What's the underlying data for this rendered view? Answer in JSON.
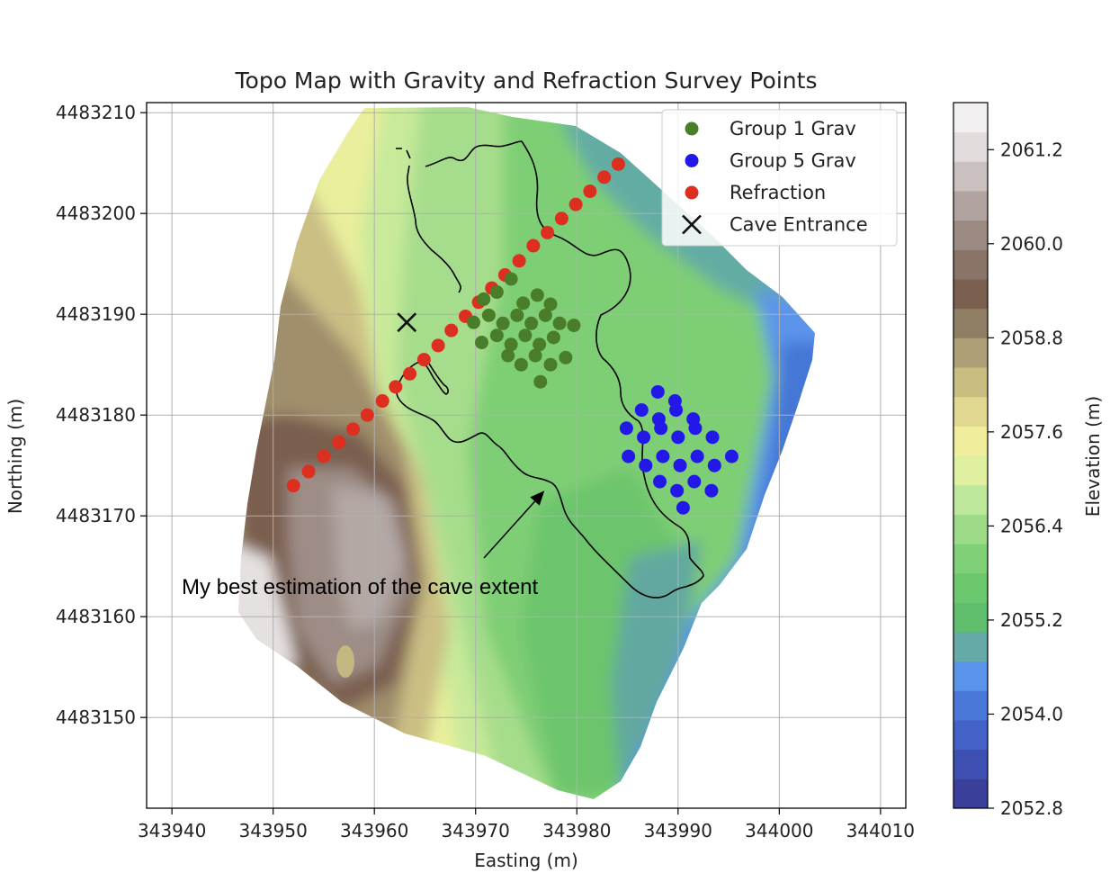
{
  "chart_data": {
    "type": "map",
    "title": "Topo Map with Gravity and Refraction Survey Points",
    "xlabel": "Easting (m)",
    "ylabel": "Northing (m)",
    "xlim": [
      343937.5,
      344012.5
    ],
    "ylim": [
      4483141,
      4483211
    ],
    "x_ticks": [
      "343940",
      "343950",
      "343960",
      "343970",
      "343980",
      "343990",
      "344000",
      "344010"
    ],
    "y_ticks": [
      "4483150",
      "4483160",
      "4483170",
      "4483180",
      "4483190",
      "4483200",
      "4483210"
    ],
    "x_tick_values": [
      343940,
      343950,
      343960,
      343970,
      343980,
      343990,
      344000,
      344010
    ],
    "y_tick_values": [
      4483150,
      4483160,
      4483170,
      4483180,
      4483190,
      4483200,
      4483210
    ],
    "grid": true,
    "colorbar": {
      "label": "Elevation (m)",
      "range": [
        2052.8,
        2061.8
      ],
      "tick_labels": [
        "2061.2",
        "2060.0",
        "2058.8",
        "2057.6",
        "2056.4",
        "2055.2",
        "2054.0",
        "2052.8"
      ],
      "tick_values": [
        2061.2,
        2060.0,
        2058.8,
        2057.6,
        2056.4,
        2055.2,
        2054.0,
        2052.8
      ],
      "colors": [
        "#3a3f9a",
        "#3e4fb2",
        "#4361c8",
        "#4a77da",
        "#5a93ea",
        "#65aaa6",
        "#60bf6c",
        "#6cc86c",
        "#80d078",
        "#9edb88",
        "#bde79b",
        "#dff0a0",
        "#f0ee9c",
        "#e0d890",
        "#c9bd82",
        "#ae9f76",
        "#917f65",
        "#7b6050",
        "#8a7468",
        "#9c8b83",
        "#b0a3a0",
        "#c9c0bf",
        "#e2dcdc",
        "#f3f0f1"
      ]
    },
    "legend": {
      "placement": "upper right",
      "entries": [
        {
          "label": "Group 1 Grav",
          "marker": "circle",
          "color": "#4a7d2a"
        },
        {
          "label": "Group 5 Grav",
          "marker": "circle",
          "color": "#2218e8"
        },
        {
          "label": "Refraction",
          "marker": "circle",
          "color": "#dc2f1f"
        },
        {
          "label": "Cave Entrance",
          "marker": "x",
          "color": "#111111"
        }
      ]
    },
    "series": [
      {
        "name": "Refraction",
        "color": "#dc2f1f",
        "points": [
          [
            343952.0,
            4483173.0
          ],
          [
            343953.5,
            4483174.4
          ],
          [
            343955.0,
            4483175.9
          ],
          [
            343956.5,
            4483177.3
          ],
          [
            343957.9,
            4483178.6
          ],
          [
            343959.3,
            4483180.0
          ],
          [
            343960.8,
            4483181.4
          ],
          [
            343962.1,
            4483182.8
          ],
          [
            343963.5,
            4483184.1
          ],
          [
            343964.9,
            4483185.5
          ],
          [
            343966.3,
            4483186.9
          ],
          [
            343967.6,
            4483188.4
          ],
          [
            343969.0,
            4483189.8
          ],
          [
            343970.3,
            4483191.2
          ],
          [
            343971.6,
            4483192.6
          ],
          [
            343972.9,
            4483193.9
          ],
          [
            343974.3,
            4483195.3
          ],
          [
            343975.7,
            4483196.8
          ],
          [
            343977.1,
            4483198.1
          ],
          [
            343978.5,
            4483199.5
          ],
          [
            343979.9,
            4483200.9
          ],
          [
            343981.3,
            4483202.2
          ],
          [
            343982.7,
            4483203.6
          ],
          [
            343984.1,
            4483204.9
          ]
        ]
      },
      {
        "name": "Group 1 Grav",
        "color": "#4a7d2a",
        "points": [
          [
            343973.5,
            4483193.5
          ],
          [
            343970.8,
            4483191.5
          ],
          [
            343972.1,
            4483192.2
          ],
          [
            343974.7,
            4483191.1
          ],
          [
            343976.1,
            4483191.9
          ],
          [
            343977.4,
            4483191.0
          ],
          [
            343969.8,
            4483189.2
          ],
          [
            343971.3,
            4483189.9
          ],
          [
            343972.7,
            4483189.1
          ],
          [
            343974.1,
            4483189.9
          ],
          [
            343975.5,
            4483189.1
          ],
          [
            343976.9,
            4483189.9
          ],
          [
            343978.3,
            4483189.1
          ],
          [
            343979.7,
            4483188.9
          ],
          [
            343970.6,
            4483187.2
          ],
          [
            343972.1,
            4483187.9
          ],
          [
            343973.5,
            4483187.0
          ],
          [
            343974.9,
            4483187.9
          ],
          [
            343976.3,
            4483187.0
          ],
          [
            343977.7,
            4483187.7
          ],
          [
            343973.2,
            4483185.9
          ],
          [
            343974.5,
            4483185.0
          ],
          [
            343975.9,
            4483185.9
          ],
          [
            343977.4,
            4483185.0
          ],
          [
            343978.9,
            4483185.7
          ],
          [
            343976.4,
            4483183.3
          ]
        ]
      },
      {
        "name": "Group 5 Grav",
        "color": "#2218e8",
        "points": [
          [
            343988.0,
            4483182.3
          ],
          [
            343989.7,
            4483181.4
          ],
          [
            343986.4,
            4483180.5
          ],
          [
            343988.1,
            4483179.6
          ],
          [
            343989.8,
            4483180.5
          ],
          [
            343991.5,
            4483179.6
          ],
          [
            343984.9,
            4483178.7
          ],
          [
            343986.6,
            4483177.8
          ],
          [
            343988.3,
            4483178.7
          ],
          [
            343990.0,
            4483177.8
          ],
          [
            343991.7,
            4483178.7
          ],
          [
            343993.4,
            4483177.8
          ],
          [
            343985.1,
            4483175.9
          ],
          [
            343986.8,
            4483175.0
          ],
          [
            343988.5,
            4483175.9
          ],
          [
            343990.2,
            4483175.0
          ],
          [
            343991.9,
            4483175.9
          ],
          [
            343993.6,
            4483175.0
          ],
          [
            343995.3,
            4483175.9
          ],
          [
            343988.2,
            4483173.4
          ],
          [
            343989.9,
            4483172.5
          ],
          [
            343991.6,
            4483173.4
          ],
          [
            343993.3,
            4483172.5
          ],
          [
            343990.5,
            4483170.8
          ]
        ]
      },
      {
        "name": "Cave Entrance",
        "color": "#111111",
        "points": [
          [
            343963.2,
            4483189.2
          ]
        ]
      }
    ],
    "annotations": [
      {
        "text": "My best estimation of the cave extent",
        "arrow_to": [
          343976.8,
          4483172.5
        ]
      }
    ]
  }
}
